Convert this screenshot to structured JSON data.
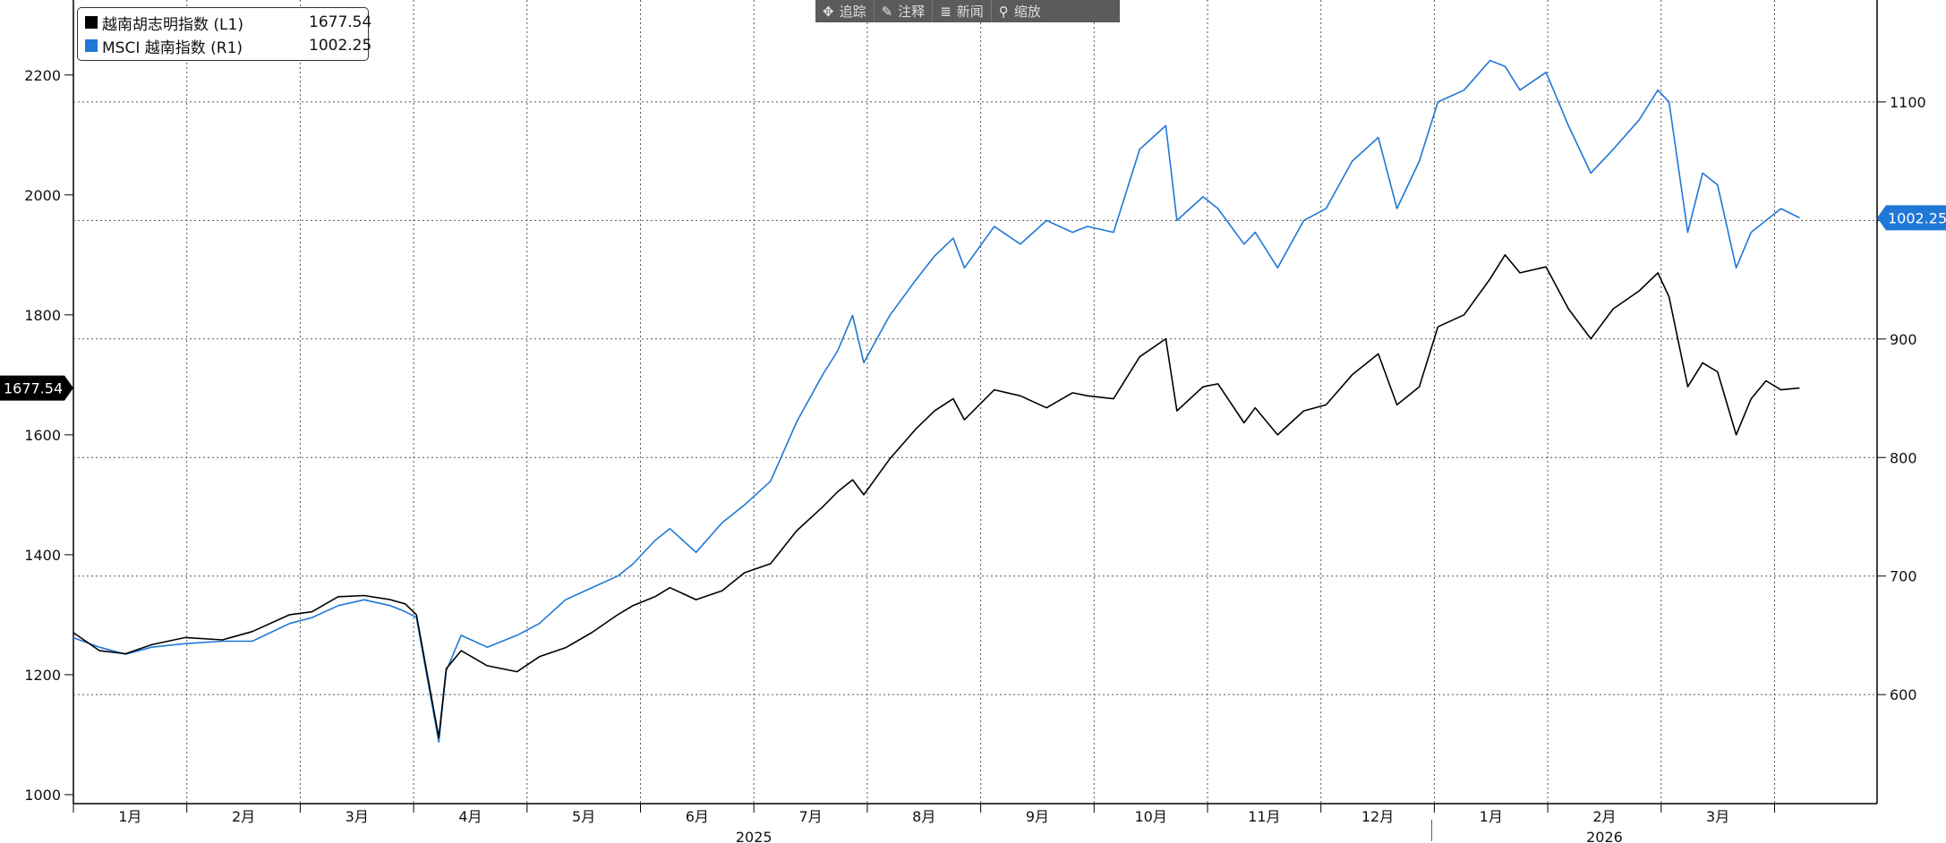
{
  "toolbar": {
    "items": [
      {
        "icon": "move-icon",
        "glyph": "✥",
        "label": "追踪"
      },
      {
        "icon": "pencil-icon",
        "glyph": "✎",
        "label": "注释"
      },
      {
        "icon": "news-icon",
        "glyph": "≣",
        "label": "新闻"
      },
      {
        "icon": "zoom-icon",
        "glyph": "⚲",
        "label": "缩放"
      }
    ]
  },
  "legend": {
    "entries": [
      {
        "name": "越南胡志明指数 (L1)",
        "value": "1677.54",
        "color": "#000000"
      },
      {
        "name": "MSCI 越南指数 (R1)",
        "value": "1002.25",
        "color": "#1f77d6"
      }
    ]
  },
  "chart_data": {
    "type": "line",
    "grid": true,
    "legend_position": "top-left",
    "x_axis": {
      "month_labels": [
        "1月",
        "2月",
        "3月",
        "4月",
        "5月",
        "6月",
        "7月",
        "8月",
        "9月",
        "10月",
        "11月",
        "12月",
        "1月",
        "2月",
        "3月"
      ],
      "year_labels": [
        "2025",
        "2026"
      ]
    },
    "y_left": {
      "ticks": [
        1000,
        1200,
        1400,
        1600,
        1800,
        2000,
        2200
      ],
      "range": [
        985,
        2325
      ]
    },
    "y_right": {
      "ticks": [
        600,
        700,
        800,
        900,
        1000,
        1100
      ],
      "range": [
        508,
        1186
      ]
    },
    "last_value_tags": {
      "left": "1677.54",
      "right": "1002.25"
    },
    "series": [
      {
        "name": "越南胡志明指数",
        "axis": "left",
        "color": "#000000",
        "points": [
          [
            "2025-01-01",
            1270
          ],
          [
            "2025-01-08",
            1240
          ],
          [
            "2025-01-15",
            1235
          ],
          [
            "2025-01-22",
            1250
          ],
          [
            "2025-01-31",
            1262
          ],
          [
            "2025-02-10",
            1258
          ],
          [
            "2025-02-18",
            1272
          ],
          [
            "2025-02-28",
            1300
          ],
          [
            "2025-03-06",
            1305
          ],
          [
            "2025-03-13",
            1330
          ],
          [
            "2025-03-20",
            1332
          ],
          [
            "2025-03-27",
            1325
          ],
          [
            "2025-03-31",
            1318
          ],
          [
            "2025-04-03",
            1300
          ],
          [
            "2025-04-09",
            1095
          ],
          [
            "2025-04-11",
            1210
          ],
          [
            "2025-04-15",
            1240
          ],
          [
            "2025-04-22",
            1215
          ],
          [
            "2025-04-30",
            1205
          ],
          [
            "2025-05-06",
            1230
          ],
          [
            "2025-05-13",
            1245
          ],
          [
            "2025-05-20",
            1270
          ],
          [
            "2025-05-27",
            1300
          ],
          [
            "2025-05-31",
            1315
          ],
          [
            "2025-06-06",
            1330
          ],
          [
            "2025-06-10",
            1345
          ],
          [
            "2025-06-17",
            1325
          ],
          [
            "2025-06-24",
            1340
          ],
          [
            "2025-06-30",
            1370
          ],
          [
            "2025-07-07",
            1385
          ],
          [
            "2025-07-14",
            1440
          ],
          [
            "2025-07-21",
            1480
          ],
          [
            "2025-07-25",
            1505
          ],
          [
            "2025-07-29",
            1525
          ],
          [
            "2025-08-01",
            1500
          ],
          [
            "2025-08-08",
            1560
          ],
          [
            "2025-08-15",
            1610
          ],
          [
            "2025-08-20",
            1640
          ],
          [
            "2025-08-25",
            1660
          ],
          [
            "2025-08-28",
            1625
          ],
          [
            "2025-09-05",
            1675
          ],
          [
            "2025-09-12",
            1665
          ],
          [
            "2025-09-19",
            1645
          ],
          [
            "2025-09-26",
            1670
          ],
          [
            "2025-09-30",
            1665
          ],
          [
            "2025-10-07",
            1660
          ],
          [
            "2025-10-14",
            1730
          ],
          [
            "2025-10-21",
            1760
          ],
          [
            "2025-10-24",
            1640
          ],
          [
            "2025-10-31",
            1680
          ],
          [
            "2025-11-04",
            1685
          ],
          [
            "2025-11-11",
            1620
          ],
          [
            "2025-11-14",
            1645
          ],
          [
            "2025-11-20",
            1600
          ],
          [
            "2025-11-27",
            1640
          ],
          [
            "2025-12-03",
            1650
          ],
          [
            "2025-12-10",
            1700
          ],
          [
            "2025-12-17",
            1735
          ],
          [
            "2025-12-22",
            1650
          ],
          [
            "2025-12-28",
            1680
          ],
          [
            "2026-01-02",
            1780
          ],
          [
            "2026-01-09",
            1800
          ],
          [
            "2026-01-16",
            1860
          ],
          [
            "2026-01-20",
            1900
          ],
          [
            "2026-01-24",
            1870
          ],
          [
            "2026-01-31",
            1880
          ],
          [
            "2026-02-06",
            1810
          ],
          [
            "2026-02-12",
            1760
          ],
          [
            "2026-02-18",
            1810
          ],
          [
            "2026-02-25",
            1840
          ],
          [
            "2026-03-02",
            1870
          ],
          [
            "2026-03-05",
            1830
          ],
          [
            "2026-03-10",
            1680
          ],
          [
            "2026-03-14",
            1720
          ],
          [
            "2026-03-18",
            1705
          ],
          [
            "2026-03-23",
            1600
          ],
          [
            "2026-03-27",
            1660
          ],
          [
            "2026-03-31",
            1690
          ],
          [
            "2026-04-04",
            1675
          ],
          [
            "2026-04-09",
            1678
          ]
        ]
      },
      {
        "name": "MSCI 越南指数",
        "axis": "right",
        "color": "#1f77d6",
        "points": [
          [
            "2025-01-01",
            648
          ],
          [
            "2025-01-08",
            640
          ],
          [
            "2025-01-15",
            634
          ],
          [
            "2025-01-22",
            640
          ],
          [
            "2025-01-31",
            643
          ],
          [
            "2025-02-10",
            645
          ],
          [
            "2025-02-18",
            645
          ],
          [
            "2025-02-28",
            660
          ],
          [
            "2025-03-06",
            665
          ],
          [
            "2025-03-13",
            675
          ],
          [
            "2025-03-20",
            680
          ],
          [
            "2025-03-27",
            675
          ],
          [
            "2025-03-31",
            670
          ],
          [
            "2025-04-03",
            665
          ],
          [
            "2025-04-09",
            560
          ],
          [
            "2025-04-11",
            620
          ],
          [
            "2025-04-15",
            650
          ],
          [
            "2025-04-22",
            640
          ],
          [
            "2025-04-30",
            650
          ],
          [
            "2025-05-06",
            660
          ],
          [
            "2025-05-13",
            680
          ],
          [
            "2025-05-20",
            690
          ],
          [
            "2025-05-27",
            700
          ],
          [
            "2025-05-31",
            710
          ],
          [
            "2025-06-06",
            730
          ],
          [
            "2025-06-10",
            740
          ],
          [
            "2025-06-17",
            720
          ],
          [
            "2025-06-24",
            745
          ],
          [
            "2025-06-30",
            760
          ],
          [
            "2025-07-07",
            780
          ],
          [
            "2025-07-14",
            830
          ],
          [
            "2025-07-21",
            870
          ],
          [
            "2025-07-25",
            890
          ],
          [
            "2025-07-29",
            920
          ],
          [
            "2025-08-01",
            880
          ],
          [
            "2025-08-08",
            920
          ],
          [
            "2025-08-15",
            950
          ],
          [
            "2025-08-20",
            970
          ],
          [
            "2025-08-25",
            985
          ],
          [
            "2025-08-28",
            960
          ],
          [
            "2025-09-05",
            995
          ],
          [
            "2025-09-12",
            980
          ],
          [
            "2025-09-19",
            1000
          ],
          [
            "2025-09-26",
            990
          ],
          [
            "2025-09-30",
            995
          ],
          [
            "2025-10-07",
            990
          ],
          [
            "2025-10-14",
            1060
          ],
          [
            "2025-10-21",
            1080
          ],
          [
            "2025-10-24",
            1000
          ],
          [
            "2025-10-31",
            1020
          ],
          [
            "2025-11-04",
            1010
          ],
          [
            "2025-11-11",
            980
          ],
          [
            "2025-11-14",
            990
          ],
          [
            "2025-11-20",
            960
          ],
          [
            "2025-11-27",
            1000
          ],
          [
            "2025-12-03",
            1010
          ],
          [
            "2025-12-10",
            1050
          ],
          [
            "2025-12-17",
            1070
          ],
          [
            "2025-12-22",
            1010
          ],
          [
            "2025-12-28",
            1050
          ],
          [
            "2026-01-02",
            1100
          ],
          [
            "2026-01-09",
            1110
          ],
          [
            "2026-01-16",
            1135
          ],
          [
            "2026-01-20",
            1130
          ],
          [
            "2026-01-24",
            1110
          ],
          [
            "2026-01-31",
            1125
          ],
          [
            "2026-02-06",
            1080
          ],
          [
            "2026-02-12",
            1040
          ],
          [
            "2026-02-18",
            1060
          ],
          [
            "2026-02-25",
            1085
          ],
          [
            "2026-03-02",
            1110
          ],
          [
            "2026-03-05",
            1100
          ],
          [
            "2026-03-10",
            990
          ],
          [
            "2026-03-14",
            1040
          ],
          [
            "2026-03-18",
            1030
          ],
          [
            "2026-03-23",
            960
          ],
          [
            "2026-03-27",
            990
          ],
          [
            "2026-03-31",
            1000
          ],
          [
            "2026-04-04",
            1010
          ],
          [
            "2026-04-09",
            1002.25
          ]
        ]
      }
    ]
  }
}
